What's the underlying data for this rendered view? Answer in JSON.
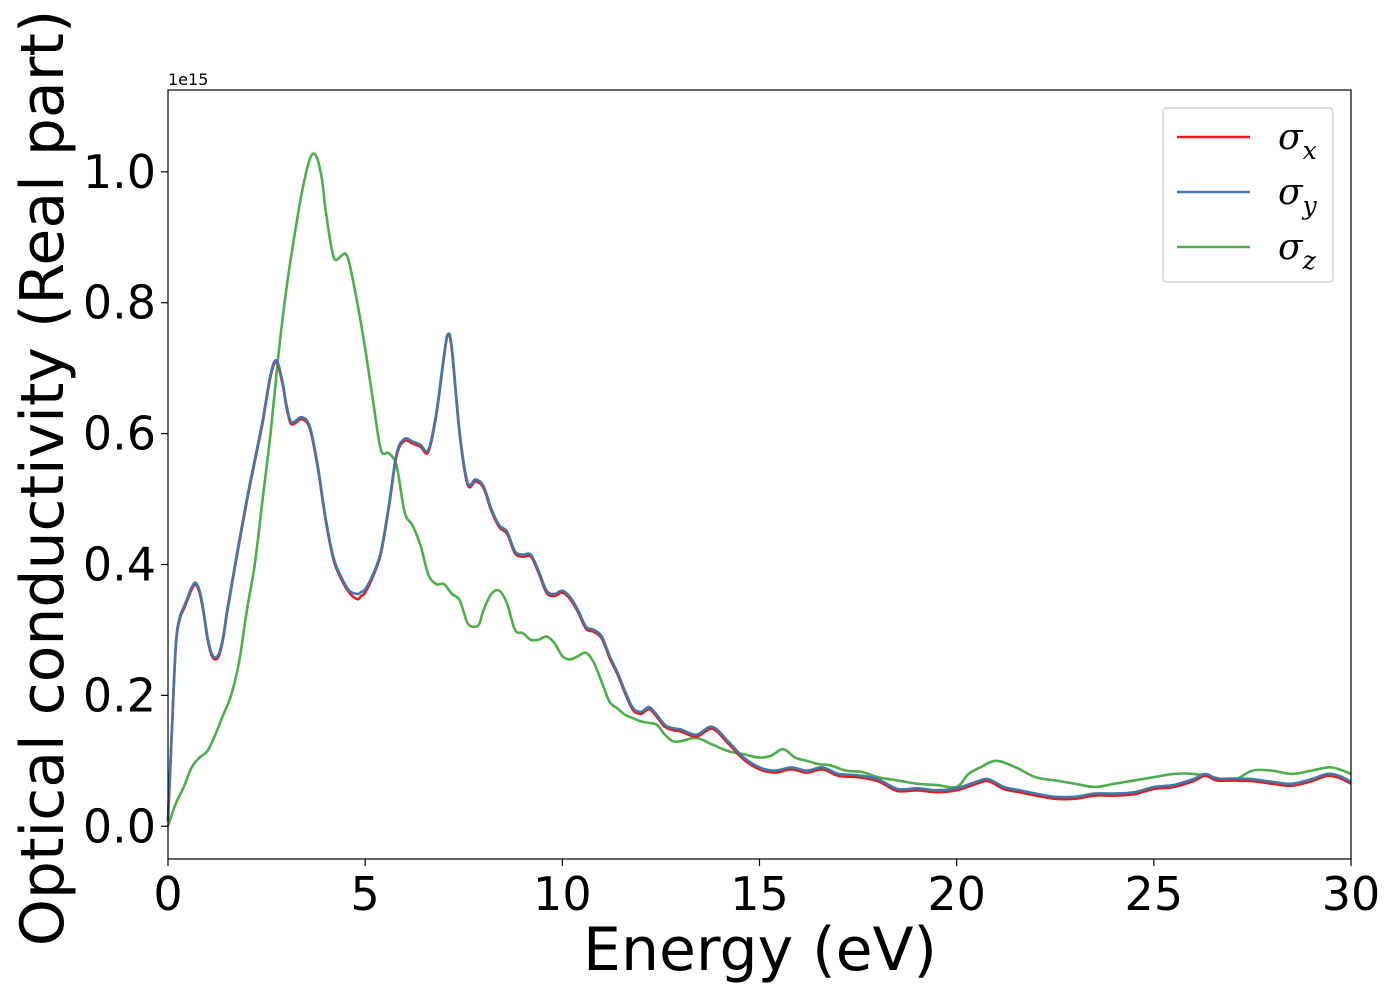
{
  "chart_data": {
    "type": "line",
    "xlabel": "Energy (eV)",
    "ylabel": "Optical conductivity (Real part)",
    "offset_text": "1e15",
    "xlim": [
      0,
      30
    ],
    "ylim": [
      -0.05,
      1.125
    ],
    "x_ticks": [
      0,
      5,
      10,
      15,
      20,
      25,
      30
    ],
    "x_tick_labels": [
      "0",
      "5",
      "10",
      "15",
      "20",
      "25",
      "30"
    ],
    "y_ticks": [
      0.0,
      0.2,
      0.4,
      0.6,
      0.8,
      1.0
    ],
    "y_tick_labels": [
      "0.0",
      "0.2",
      "0.4",
      "0.6",
      "0.8",
      "1.0"
    ],
    "grid": false,
    "legend_position": "top-right",
    "y_unit_scale": "1e15",
    "series": [
      {
        "name": "σx",
        "legend_base": "σ",
        "legend_sub": "x",
        "color": "#e41a1c",
        "x": [
          0,
          0.1,
          0.2,
          0.3,
          0.4,
          0.5,
          0.6,
          0.7,
          0.8,
          0.9,
          1.0,
          1.1,
          1.2,
          1.3,
          1.4,
          1.5,
          1.7,
          2.0,
          2.2,
          2.4,
          2.6,
          2.75,
          2.9,
          3.0,
          3.1,
          3.2,
          3.4,
          3.6,
          3.8,
          4.0,
          4.2,
          4.4,
          4.6,
          4.8,
          4.9,
          5.0,
          5.2,
          5.4,
          5.6,
          5.8,
          6.0,
          6.2,
          6.4,
          6.6,
          6.8,
          7.0,
          7.1,
          7.2,
          7.4,
          7.6,
          7.8,
          8.0,
          8.2,
          8.4,
          8.6,
          8.8,
          9.0,
          9.2,
          9.4,
          9.6,
          9.8,
          10.0,
          10.2,
          10.4,
          10.6,
          10.8,
          11.0,
          11.2,
          11.4,
          11.6,
          11.8,
          12.0,
          12.2,
          12.4,
          12.6,
          12.8,
          13.0,
          13.4,
          13.8,
          14.2,
          14.6,
          15.0,
          15.4,
          15.8,
          16.2,
          16.6,
          17.0,
          17.5,
          18.0,
          18.5,
          19.0,
          19.5,
          20.0,
          20.5,
          20.8,
          21.2,
          21.6,
          22.0,
          22.5,
          23.0,
          23.5,
          24.0,
          24.5,
          25.0,
          25.5,
          26.0,
          26.3,
          26.6,
          27.0,
          27.5,
          28.0,
          28.5,
          29.0,
          29.4,
          29.7,
          30.0
        ],
        "y": [
          0.01,
          0.15,
          0.28,
          0.32,
          0.335,
          0.35,
          0.365,
          0.372,
          0.36,
          0.33,
          0.29,
          0.265,
          0.258,
          0.265,
          0.29,
          0.33,
          0.4,
          0.5,
          0.56,
          0.62,
          0.69,
          0.712,
          0.68,
          0.645,
          0.62,
          0.618,
          0.625,
          0.61,
          0.55,
          0.47,
          0.41,
          0.38,
          0.36,
          0.35,
          0.355,
          0.36,
          0.385,
          0.42,
          0.49,
          0.57,
          0.592,
          0.588,
          0.583,
          0.575,
          0.63,
          0.72,
          0.755,
          0.73,
          0.6,
          0.525,
          0.53,
          0.52,
          0.485,
          0.46,
          0.45,
          0.42,
          0.415,
          0.415,
          0.39,
          0.36,
          0.355,
          0.36,
          0.35,
          0.33,
          0.305,
          0.3,
          0.29,
          0.26,
          0.235,
          0.205,
          0.18,
          0.175,
          0.182,
          0.17,
          0.155,
          0.15,
          0.148,
          0.14,
          0.152,
          0.13,
          0.105,
          0.09,
          0.085,
          0.09,
          0.085,
          0.09,
          0.08,
          0.078,
          0.072,
          0.057,
          0.058,
          0.055,
          0.058,
          0.068,
          0.072,
          0.06,
          0.055,
          0.05,
          0.045,
          0.045,
          0.05,
          0.05,
          0.052,
          0.06,
          0.063,
          0.072,
          0.08,
          0.073,
          0.073,
          0.072,
          0.068,
          0.065,
          0.072,
          0.08,
          0.077,
          0.068
        ],
        "y_offset": -0.003
      },
      {
        "name": "σy",
        "legend_base": "σ",
        "legend_sub": "y",
        "color": "#4477aa",
        "x": [
          0,
          0.1,
          0.2,
          0.3,
          0.4,
          0.5,
          0.6,
          0.7,
          0.8,
          0.9,
          1.0,
          1.1,
          1.2,
          1.3,
          1.4,
          1.5,
          1.7,
          2.0,
          2.2,
          2.4,
          2.6,
          2.75,
          2.9,
          3.0,
          3.1,
          3.2,
          3.4,
          3.6,
          3.8,
          4.0,
          4.2,
          4.4,
          4.6,
          4.8,
          4.9,
          5.0,
          5.2,
          5.4,
          5.6,
          5.8,
          6.0,
          6.2,
          6.4,
          6.6,
          6.8,
          7.0,
          7.1,
          7.2,
          7.4,
          7.6,
          7.8,
          8.0,
          8.2,
          8.4,
          8.6,
          8.8,
          9.0,
          9.2,
          9.4,
          9.6,
          9.8,
          10.0,
          10.2,
          10.4,
          10.6,
          10.8,
          11.0,
          11.2,
          11.4,
          11.6,
          11.8,
          12.0,
          12.2,
          12.4,
          12.6,
          12.8,
          13.0,
          13.4,
          13.8,
          14.2,
          14.6,
          15.0,
          15.4,
          15.8,
          16.2,
          16.6,
          17.0,
          17.5,
          18.0,
          18.5,
          19.0,
          19.5,
          20.0,
          20.5,
          20.8,
          21.2,
          21.6,
          22.0,
          22.5,
          23.0,
          23.5,
          24.0,
          24.5,
          25.0,
          25.5,
          26.0,
          26.3,
          26.6,
          27.0,
          27.5,
          28.0,
          28.5,
          29.0,
          29.4,
          29.7,
          30.0
        ],
        "y": [
          0.01,
          0.15,
          0.28,
          0.32,
          0.335,
          0.35,
          0.365,
          0.372,
          0.36,
          0.33,
          0.29,
          0.265,
          0.258,
          0.265,
          0.29,
          0.33,
          0.4,
          0.5,
          0.56,
          0.62,
          0.69,
          0.712,
          0.68,
          0.645,
          0.62,
          0.618,
          0.625,
          0.61,
          0.55,
          0.47,
          0.41,
          0.38,
          0.36,
          0.355,
          0.358,
          0.362,
          0.385,
          0.42,
          0.49,
          0.57,
          0.592,
          0.588,
          0.583,
          0.575,
          0.63,
          0.72,
          0.752,
          0.73,
          0.6,
          0.525,
          0.53,
          0.52,
          0.485,
          0.46,
          0.45,
          0.42,
          0.415,
          0.415,
          0.39,
          0.36,
          0.355,
          0.36,
          0.35,
          0.33,
          0.305,
          0.3,
          0.29,
          0.26,
          0.235,
          0.205,
          0.18,
          0.175,
          0.182,
          0.17,
          0.155,
          0.15,
          0.148,
          0.14,
          0.152,
          0.13,
          0.105,
          0.09,
          0.085,
          0.09,
          0.085,
          0.09,
          0.08,
          0.078,
          0.072,
          0.057,
          0.058,
          0.055,
          0.058,
          0.068,
          0.072,
          0.06,
          0.055,
          0.05,
          0.045,
          0.045,
          0.05,
          0.05,
          0.052,
          0.06,
          0.063,
          0.072,
          0.08,
          0.073,
          0.073,
          0.072,
          0.068,
          0.065,
          0.072,
          0.08,
          0.077,
          0.068
        ]
      },
      {
        "name": "σz",
        "legend_base": "σ",
        "legend_sub": "z",
        "color": "#4daf4a",
        "x": [
          0,
          0.2,
          0.4,
          0.6,
          0.8,
          1.0,
          1.2,
          1.4,
          1.6,
          1.8,
          2.0,
          2.2,
          2.4,
          2.6,
          2.8,
          3.0,
          3.2,
          3.4,
          3.6,
          3.75,
          3.9,
          4.0,
          4.2,
          4.4,
          4.5,
          4.6,
          4.8,
          5.0,
          5.2,
          5.4,
          5.6,
          5.8,
          6.0,
          6.2,
          6.4,
          6.6,
          6.8,
          7.0,
          7.2,
          7.4,
          7.6,
          7.8,
          7.9,
          8.0,
          8.2,
          8.4,
          8.6,
          8.8,
          9.0,
          9.2,
          9.4,
          9.6,
          9.8,
          10.0,
          10.2,
          10.4,
          10.6,
          10.8,
          11.0,
          11.2,
          11.4,
          11.6,
          11.8,
          12.0,
          12.2,
          12.4,
          12.6,
          12.8,
          13.0,
          13.4,
          13.8,
          14.2,
          14.6,
          15.0,
          15.3,
          15.6,
          15.9,
          16.2,
          16.5,
          16.8,
          17.2,
          17.6,
          18.0,
          18.5,
          19.0,
          19.5,
          20.0,
          20.3,
          20.6,
          21.0,
          21.5,
          22.0,
          22.5,
          23.0,
          23.5,
          24.0,
          24.5,
          25.0,
          25.5,
          26.0,
          26.5,
          27.0,
          27.5,
          28.0,
          28.5,
          29.0,
          29.5,
          30.0
        ],
        "y": [
          0.0,
          0.035,
          0.06,
          0.09,
          0.105,
          0.115,
          0.14,
          0.17,
          0.2,
          0.25,
          0.33,
          0.4,
          0.5,
          0.6,
          0.72,
          0.82,
          0.9,
          0.97,
          1.02,
          1.025,
          0.99,
          0.94,
          0.87,
          0.872,
          0.875,
          0.86,
          0.8,
          0.73,
          0.65,
          0.575,
          0.57,
          0.55,
          0.48,
          0.46,
          0.43,
          0.385,
          0.37,
          0.37,
          0.355,
          0.345,
          0.31,
          0.305,
          0.31,
          0.33,
          0.355,
          0.36,
          0.34,
          0.3,
          0.295,
          0.285,
          0.285,
          0.29,
          0.28,
          0.26,
          0.255,
          0.26,
          0.265,
          0.25,
          0.22,
          0.19,
          0.18,
          0.17,
          0.165,
          0.16,
          0.158,
          0.155,
          0.14,
          0.13,
          0.13,
          0.135,
          0.125,
          0.115,
          0.11,
          0.105,
          0.108,
          0.118,
          0.105,
          0.1,
          0.095,
          0.093,
          0.085,
          0.083,
          0.075,
          0.07,
          0.065,
          0.063,
          0.06,
          0.08,
          0.09,
          0.1,
          0.09,
          0.075,
          0.07,
          0.065,
          0.06,
          0.065,
          0.07,
          0.075,
          0.08,
          0.08,
          0.075,
          0.07,
          0.085,
          0.085,
          0.08,
          0.085,
          0.09,
          0.08
        ]
      }
    ]
  }
}
